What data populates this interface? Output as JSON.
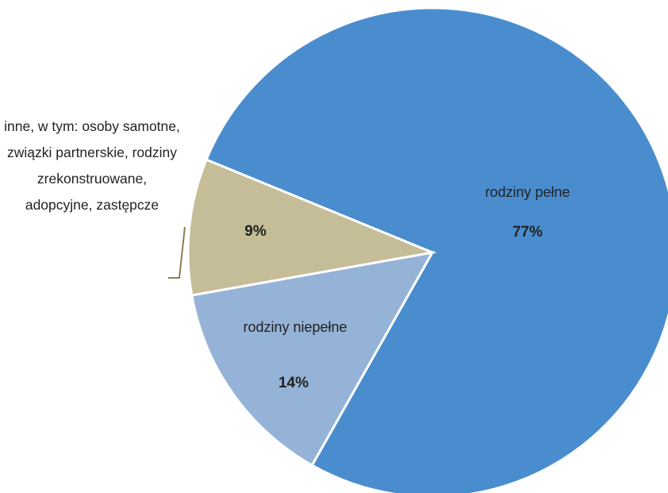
{
  "chart_data": {
    "type": "pie",
    "categories": [
      "rodziny pełne",
      "rodziny niepełne",
      "inne, w tym: osoby samotne, związki partnerskie, rodziny zrekonstruowane, adopcyjne, zastępcze"
    ],
    "values": [
      77,
      14,
      9
    ],
    "value_labels": [
      "77%",
      "14%",
      "9%"
    ],
    "colors": [
      "#4a8dcf",
      "#95b3d7",
      "#c4bd97"
    ]
  }
}
